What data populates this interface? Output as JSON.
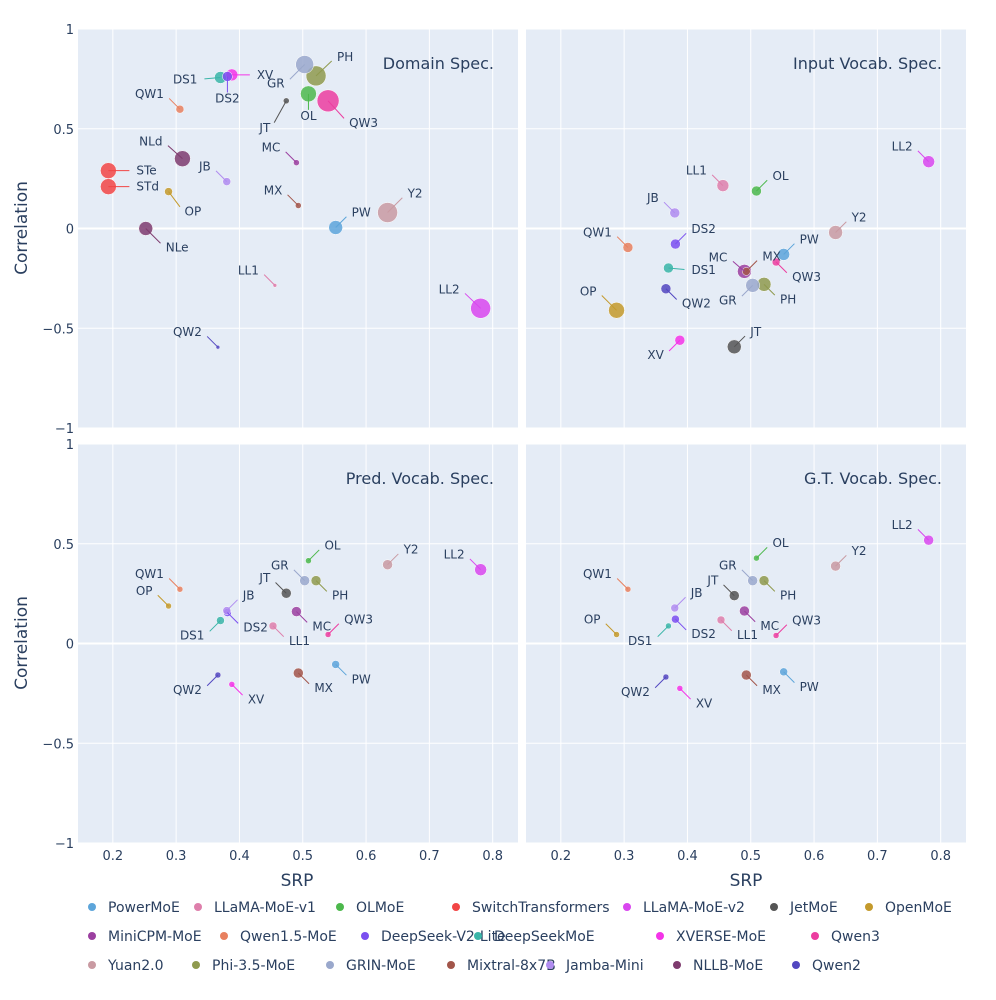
{
  "chart_data": {
    "type": "scatter",
    "ylabel": "Correlation",
    "xlabel": "SRP",
    "xlim": [
      0.145,
      0.84
    ],
    "ylim": [
      -1,
      1
    ],
    "xticks": [
      "0.2",
      "0.3",
      "0.4",
      "0.5",
      "0.6",
      "0.7",
      "0.8"
    ],
    "yticks": [
      "1",
      "0.5",
      "0",
      "−0.5",
      "−1"
    ],
    "models": [
      {
        "name": "PowerMoE",
        "abbr": "PW",
        "color": "#5DA5DA"
      },
      {
        "name": "LLaMA-MoE-v1",
        "abbr": "LL1",
        "color": "#DE7FAB"
      },
      {
        "name": "OLMoE",
        "abbr": "OL",
        "color": "#4CB84C"
      },
      {
        "name": "SwitchTransformers",
        "abbr": "ST",
        "color": "#F24545"
      },
      {
        "name": "LLaMA-MoE-v2",
        "abbr": "LL2",
        "color": "#D946EF"
      },
      {
        "name": "JetMoE",
        "abbr": "JT",
        "color": "#555555"
      },
      {
        "name": "OpenMoE",
        "abbr": "OP",
        "color": "#C49A2C"
      },
      {
        "name": "MiniCPM-MoE",
        "abbr": "MC",
        "color": "#9B3FA0"
      },
      {
        "name": "Qwen1.5-MoE",
        "abbr": "QW1",
        "color": "#E8805F"
      },
      {
        "name": "DeepSeek-V2-Lite",
        "abbr": "DS2",
        "color": "#7B4FF0"
      },
      {
        "name": "DeepSeekMoE",
        "abbr": "DS1",
        "color": "#3AB5A8"
      },
      {
        "name": "XVERSE-MoE",
        "abbr": "XV",
        "color": "#F434E8"
      },
      {
        "name": "Qwen3",
        "abbr": "QW3",
        "color": "#EC3DA0"
      },
      {
        "name": "Yuan2.0",
        "abbr": "Y2",
        "color": "#C99AA2"
      },
      {
        "name": "Phi-3.5-MoE",
        "abbr": "PH",
        "color": "#8F9A4E"
      },
      {
        "name": "GRIN-MoE",
        "abbr": "GR",
        "color": "#9AA8CC"
      },
      {
        "name": "Mixtral-8x7B",
        "abbr": "MX",
        "color": "#A2554A"
      },
      {
        "name": "Jamba-Mini",
        "abbr": "JB",
        "color": "#B08CF0"
      },
      {
        "name": "NLLB-MoE",
        "abbr": "NL",
        "color": "#7E3B6E"
      },
      {
        "name": "Qwen2",
        "abbr": "QW2",
        "color": "#5247C0"
      }
    ],
    "panels": [
      {
        "title": "Domain Spec.",
        "points": [
          {
            "label": "PW",
            "model": "PowerMoE",
            "x": 0.552,
            "y": 0.005,
            "r": 7,
            "lx": 15,
            "ly": -15
          },
          {
            "label": "LL1",
            "model": "LLaMA-MoE-v1",
            "x": 0.456,
            "y": -0.285,
            "r": 2,
            "lx": -15,
            "ly": -15
          },
          {
            "label": "OL",
            "model": "OLMoE",
            "x": 0.509,
            "y": 0.675,
            "r": 8,
            "lx": 0,
            "ly": 22
          },
          {
            "label": "STe",
            "model": "SwitchTransformers",
            "x": 0.193,
            "y": 0.29,
            "r": 8,
            "lx": 27,
            "ly": 0
          },
          {
            "label": "STd",
            "model": "SwitchTransformers",
            "x": 0.193,
            "y": 0.21,
            "r": 8,
            "lx": 27,
            "ly": 0
          },
          {
            "label": "LL2",
            "model": "LLaMA-MoE-v2",
            "x": 0.781,
            "y": -0.4,
            "r": 10,
            "lx": -20,
            "ly": -19
          },
          {
            "label": "JT",
            "model": "JetMoE",
            "x": 0.474,
            "y": 0.64,
            "r": 3,
            "lx": -15,
            "ly": 27
          },
          {
            "label": "OP",
            "model": "OpenMoE",
            "x": 0.288,
            "y": 0.185,
            "r": 4,
            "lx": 15,
            "ly": 20
          },
          {
            "label": "MC",
            "model": "MiniCPM-MoE",
            "x": 0.49,
            "y": 0.33,
            "r": 3,
            "lx": -15,
            "ly": -15
          },
          {
            "label": "QW1",
            "model": "Qwen1.5-MoE",
            "x": 0.306,
            "y": 0.598,
            "r": 4,
            "lx": -15,
            "ly": -15
          },
          {
            "label": "DS2",
            "model": "DeepSeek-V2-Lite",
            "x": 0.381,
            "y": 0.762,
            "r": 5,
            "lx": 0,
            "ly": 22
          },
          {
            "label": "DS1",
            "model": "DeepSeekMoE",
            "x": 0.37,
            "y": 0.757,
            "r": 6,
            "lx": -22,
            "ly": 2
          },
          {
            "label": "XV",
            "model": "XVERSE-MoE",
            "x": 0.388,
            "y": 0.77,
            "r": 6,
            "lx": 24,
            "ly": 0
          },
          {
            "label": "QW3",
            "model": "Qwen3",
            "x": 0.54,
            "y": 0.64,
            "r": 11,
            "lx": 20,
            "ly": 22
          },
          {
            "label": "Y2",
            "model": "Yuan2.0",
            "x": 0.634,
            "y": 0.08,
            "r": 10,
            "lx": 19,
            "ly": -19
          },
          {
            "label": "PH",
            "model": "Phi-3.5-MoE",
            "x": 0.521,
            "y": 0.765,
            "r": 10,
            "lx": 20,
            "ly": -19
          },
          {
            "label": "GR",
            "model": "GRIN-MoE",
            "x": 0.503,
            "y": 0.822,
            "r": 9,
            "lx": -19,
            "ly": 19
          },
          {
            "label": "MX",
            "model": "Mixtral-8x7B",
            "x": 0.493,
            "y": 0.115,
            "r": 3,
            "lx": -15,
            "ly": -15
          },
          {
            "label": "JB",
            "model": "Jamba-Mini",
            "x": 0.38,
            "y": 0.235,
            "r": 4,
            "lx": -15,
            "ly": -15
          },
          {
            "label": "NLd",
            "model": "NLLB-MoE",
            "x": 0.31,
            "y": 0.35,
            "r": 8,
            "lx": -19,
            "ly": -17
          },
          {
            "label": "NLe",
            "model": "NLLB-MoE",
            "x": 0.252,
            "y": 0.0,
            "r": 7,
            "lx": 19,
            "ly": 19
          },
          {
            "label": "QW2",
            "model": "Qwen2",
            "x": 0.366,
            "y": -0.595,
            "r": 2,
            "lx": -15,
            "ly": -15
          }
        ]
      },
      {
        "title": "Input Vocab. Spec.",
        "points": [
          {
            "label": "PW",
            "model": "PowerMoE",
            "x": 0.552,
            "y": -0.13,
            "r": 6,
            "lx": 15,
            "ly": -15
          },
          {
            "label": "LL1",
            "model": "LLaMA-MoE-v1",
            "x": 0.456,
            "y": 0.215,
            "r": 6,
            "lx": -15,
            "ly": -15
          },
          {
            "label": "OL",
            "model": "OLMoE",
            "x": 0.509,
            "y": 0.188,
            "r": 5,
            "lx": 15,
            "ly": -15
          },
          {
            "label": "LL2",
            "model": "LLaMA-MoE-v2",
            "x": 0.781,
            "y": 0.335,
            "r": 6,
            "lx": -15,
            "ly": -15
          },
          {
            "label": "JT",
            "model": "JetMoE",
            "x": 0.474,
            "y": -0.593,
            "r": 7,
            "lx": 15,
            "ly": -15
          },
          {
            "label": "OP",
            "model": "OpenMoE",
            "x": 0.288,
            "y": -0.41,
            "r": 8,
            "lx": -19,
            "ly": -19
          },
          {
            "label": "MC",
            "model": "MiniCPM-MoE",
            "x": 0.49,
            "y": -0.215,
            "r": 7,
            "lx": -16,
            "ly": -14
          },
          {
            "label": "QW1",
            "model": "Qwen1.5-MoE",
            "x": 0.306,
            "y": -0.095,
            "r": 5,
            "lx": -15,
            "ly": -15
          },
          {
            "label": "DS2",
            "model": "DeepSeek-V2-Lite",
            "x": 0.381,
            "y": -0.078,
            "r": 5,
            "lx": 15,
            "ly": -15
          },
          {
            "label": "DS1",
            "model": "DeepSeekMoE",
            "x": 0.37,
            "y": -0.198,
            "r": 5,
            "lx": 22,
            "ly": 2
          },
          {
            "label": "XV",
            "model": "XVERSE-MoE",
            "x": 0.388,
            "y": -0.56,
            "r": 5,
            "lx": -15,
            "ly": 15
          },
          {
            "label": "QW3",
            "model": "Qwen3",
            "x": 0.54,
            "y": -0.168,
            "r": 4,
            "lx": 15,
            "ly": 15
          },
          {
            "label": "Y2",
            "model": "Yuan2.0",
            "x": 0.634,
            "y": -0.02,
            "r": 7,
            "lx": 15,
            "ly": -15
          },
          {
            "label": "PH",
            "model": "Phi-3.5-MoE",
            "x": 0.521,
            "y": -0.28,
            "r": 7,
            "lx": 15,
            "ly": 15
          },
          {
            "label": "GR",
            "model": "GRIN-MoE",
            "x": 0.503,
            "y": -0.285,
            "r": 7,
            "lx": -15,
            "ly": 15
          },
          {
            "label": "MX",
            "model": "Mixtral-8x7B",
            "x": 0.493,
            "y": -0.215,
            "r": 4,
            "lx": 15,
            "ly": -15
          },
          {
            "label": "JB",
            "model": "Jamba-Mini",
            "x": 0.38,
            "y": 0.078,
            "r": 5,
            "lx": -15,
            "ly": -15
          },
          {
            "label": "QW2",
            "model": "Qwen2",
            "x": 0.366,
            "y": -0.302,
            "r": 5,
            "lx": 15,
            "ly": 15
          }
        ]
      },
      {
        "title": "Pred. Vocab. Spec.",
        "points": [
          {
            "label": "PW",
            "model": "PowerMoE",
            "x": 0.552,
            "y": -0.105,
            "r": 4,
            "lx": 15,
            "ly": 15
          },
          {
            "label": "LL1",
            "model": "LLaMA-MoE-v1",
            "x": 0.453,
            "y": 0.088,
            "r": 4,
            "lx": 15,
            "ly": 15
          },
          {
            "label": "OL",
            "model": "OLMoE",
            "x": 0.509,
            "y": 0.415,
            "r": 3,
            "lx": 15,
            "ly": -15
          },
          {
            "label": "LL2",
            "model": "LLaMA-MoE-v2",
            "x": 0.781,
            "y": 0.37,
            "r": 6,
            "lx": -15,
            "ly": -15
          },
          {
            "label": "JT",
            "model": "JetMoE",
            "x": 0.474,
            "y": 0.252,
            "r": 5,
            "lx": -15,
            "ly": -15
          },
          {
            "label": "OP",
            "model": "OpenMoE",
            "x": 0.288,
            "y": 0.188,
            "r": 3,
            "lx": -15,
            "ly": -15
          },
          {
            "label": "MC",
            "model": "MiniCPM-MoE",
            "x": 0.49,
            "y": 0.16,
            "r": 5,
            "lx": 15,
            "ly": 15
          },
          {
            "label": "QW1",
            "model": "Qwen1.5-MoE",
            "x": 0.306,
            "y": 0.272,
            "r": 3,
            "lx": -15,
            "ly": -15
          },
          {
            "label": "DS2",
            "model": "DeepSeek-V2-Lite",
            "x": 0.381,
            "y": 0.155,
            "r": 4,
            "lx": 15,
            "ly": 15
          },
          {
            "label": "DS1",
            "model": "DeepSeekMoE",
            "x": 0.37,
            "y": 0.115,
            "r": 4,
            "lx": -15,
            "ly": 15
          },
          {
            "label": "XV",
            "model": "XVERSE-MoE",
            "x": 0.388,
            "y": -0.205,
            "r": 3,
            "lx": 15,
            "ly": 15
          },
          {
            "label": "QW3",
            "model": "Qwen3",
            "x": 0.54,
            "y": 0.045,
            "r": 3,
            "lx": 15,
            "ly": -15
          },
          {
            "label": "Y2",
            "model": "Yuan2.0",
            "x": 0.634,
            "y": 0.395,
            "r": 5,
            "lx": 15,
            "ly": -15
          },
          {
            "label": "PH",
            "model": "Phi-3.5-MoE",
            "x": 0.521,
            "y": 0.315,
            "r": 5,
            "lx": 15,
            "ly": 15
          },
          {
            "label": "GR",
            "model": "GRIN-MoE",
            "x": 0.503,
            "y": 0.315,
            "r": 5,
            "lx": -15,
            "ly": -15
          },
          {
            "label": "MX",
            "model": "Mixtral-8x7B",
            "x": 0.493,
            "y": -0.148,
            "r": 5,
            "lx": 15,
            "ly": 15
          },
          {
            "label": "JB",
            "model": "Jamba-Mini",
            "x": 0.38,
            "y": 0.165,
            "r": 4,
            "lx": 15,
            "ly": -15
          },
          {
            "label": "QW2",
            "model": "Qwen2",
            "x": 0.366,
            "y": -0.158,
            "r": 3,
            "lx": -15,
            "ly": 15
          }
        ]
      },
      {
        "title": "G.T. Vocab. Spec.",
        "points": [
          {
            "label": "PW",
            "model": "PowerMoE",
            "x": 0.552,
            "y": -0.142,
            "r": 4,
            "lx": 15,
            "ly": 15
          },
          {
            "label": "LL1",
            "model": "LLaMA-MoE-v1",
            "x": 0.453,
            "y": 0.118,
            "r": 4,
            "lx": 15,
            "ly": 15
          },
          {
            "label": "OL",
            "model": "OLMoE",
            "x": 0.509,
            "y": 0.428,
            "r": 3,
            "lx": 15,
            "ly": -15
          },
          {
            "label": "LL2",
            "model": "LLaMA-MoE-v2",
            "x": 0.781,
            "y": 0.518,
            "r": 5,
            "lx": -15,
            "ly": -15
          },
          {
            "label": "JT",
            "model": "JetMoE",
            "x": 0.474,
            "y": 0.24,
            "r": 5,
            "lx": -15,
            "ly": -15
          },
          {
            "label": "OP",
            "model": "OpenMoE",
            "x": 0.288,
            "y": 0.045,
            "r": 3,
            "lx": -15,
            "ly": -15
          },
          {
            "label": "MC",
            "model": "MiniCPM-MoE",
            "x": 0.49,
            "y": 0.163,
            "r": 5,
            "lx": 15,
            "ly": 15
          },
          {
            "label": "QW1",
            "model": "Qwen1.5-MoE",
            "x": 0.306,
            "y": 0.272,
            "r": 3,
            "lx": -15,
            "ly": -15
          },
          {
            "label": "DS2",
            "model": "DeepSeek-V2-Lite",
            "x": 0.381,
            "y": 0.122,
            "r": 4,
            "lx": 15,
            "ly": 15
          },
          {
            "label": "DS1",
            "model": "DeepSeekMoE",
            "x": 0.37,
            "y": 0.088,
            "r": 3,
            "lx": -15,
            "ly": 15
          },
          {
            "label": "XV",
            "model": "XVERSE-MoE",
            "x": 0.388,
            "y": -0.225,
            "r": 3,
            "lx": 15,
            "ly": 15
          },
          {
            "label": "QW3",
            "model": "Qwen3",
            "x": 0.54,
            "y": 0.04,
            "r": 3,
            "lx": 15,
            "ly": -15
          },
          {
            "label": "Y2",
            "model": "Yuan2.0",
            "x": 0.634,
            "y": 0.388,
            "r": 5,
            "lx": 15,
            "ly": -15
          },
          {
            "label": "PH",
            "model": "Phi-3.5-MoE",
            "x": 0.521,
            "y": 0.315,
            "r": 5,
            "lx": 15,
            "ly": 15
          },
          {
            "label": "GR",
            "model": "GRIN-MoE",
            "x": 0.503,
            "y": 0.315,
            "r": 5,
            "lx": -15,
            "ly": -15
          },
          {
            "label": "MX",
            "model": "Mixtral-8x7B",
            "x": 0.493,
            "y": -0.158,
            "r": 5,
            "lx": 15,
            "ly": 15
          },
          {
            "label": "JB",
            "model": "Jamba-Mini",
            "x": 0.38,
            "y": 0.178,
            "r": 4,
            "lx": 15,
            "ly": -15
          },
          {
            "label": "QW2",
            "model": "Qwen2",
            "x": 0.366,
            "y": -0.168,
            "r": 3,
            "lx": -15,
            "ly": 15
          }
        ]
      }
    ]
  }
}
